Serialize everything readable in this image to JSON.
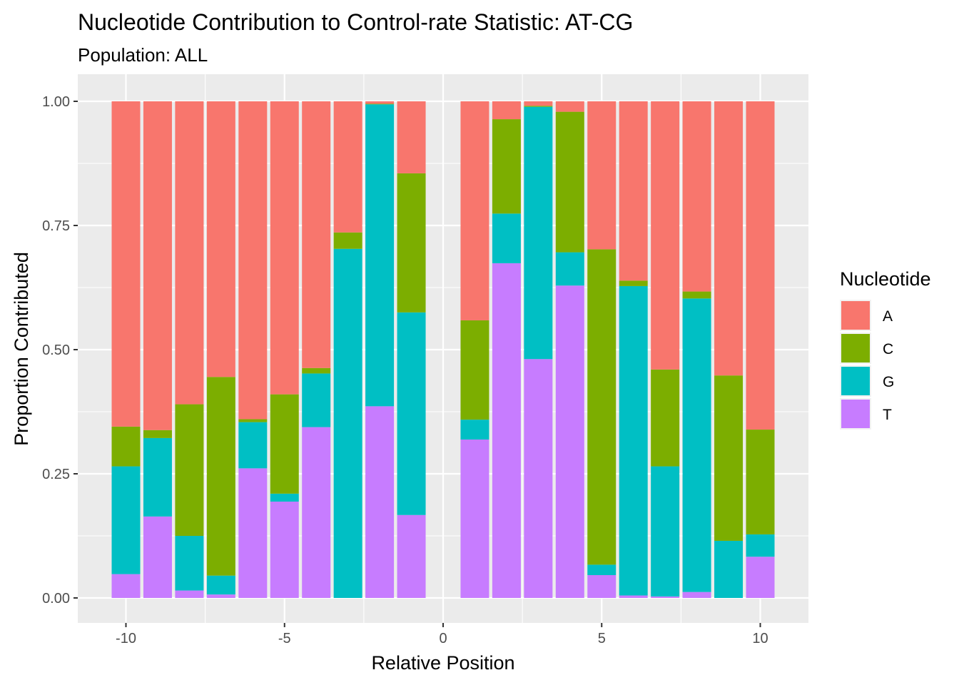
{
  "chart_data": {
    "type": "bar",
    "stacked": true,
    "title": "Nucleotide Contribution to Control-rate Statistic: AT-CG",
    "subtitle": "Population: ALL",
    "xlabel": "Relative Position",
    "ylabel": "Proportion Contributed",
    "xlim": [
      -10.5,
      10.5
    ],
    "ylim": [
      0,
      1
    ],
    "x_ticks": [
      -10,
      -5,
      0,
      5,
      10
    ],
    "x_tick_labels": [
      "-10",
      "-5",
      "0",
      "5",
      "10"
    ],
    "y_ticks": [
      0,
      0.25,
      0.5,
      0.75,
      1.0
    ],
    "y_tick_labels": [
      "0.00",
      "0.25",
      "0.50",
      "0.75",
      "1.00"
    ],
    "grid": true,
    "legend": {
      "title": "Nucleotide",
      "placement": "right"
    },
    "stack_order_bottom_to_top": [
      "T",
      "G",
      "C",
      "A"
    ],
    "x": [
      -10,
      -9,
      -8,
      -7,
      -6,
      -5,
      -4,
      -3,
      -2,
      -1,
      1,
      2,
      3,
      4,
      5,
      6,
      7,
      8,
      9,
      10
    ],
    "series": [
      {
        "name": "A",
        "color": "#F8766D",
        "values": [
          0.655,
          0.662,
          0.61,
          0.555,
          0.64,
          0.59,
          0.537,
          0.264,
          0.005,
          0.145,
          0.441,
          0.036,
          0.009,
          0.021,
          0.298,
          0.361,
          0.54,
          0.383,
          0.552,
          0.661
        ]
      },
      {
        "name": "C",
        "color": "#7CAE00",
        "values": [
          0.08,
          0.016,
          0.265,
          0.4,
          0.006,
          0.2,
          0.011,
          0.033,
          0.001,
          0.28,
          0.2,
          0.19,
          0.002,
          0.283,
          0.635,
          0.011,
          0.195,
          0.014,
          0.333,
          0.211
        ]
      },
      {
        "name": "G",
        "color": "#00BFC4",
        "values": [
          0.217,
          0.158,
          0.11,
          0.038,
          0.093,
          0.016,
          0.108,
          0.703,
          0.608,
          0.408,
          0.04,
          0.1,
          0.508,
          0.067,
          0.021,
          0.623,
          0.262,
          0.591,
          0.115,
          0.045
        ]
      },
      {
        "name": "T",
        "color": "#C77CFF",
        "values": [
          0.048,
          0.164,
          0.015,
          0.007,
          0.261,
          0.194,
          0.344,
          0.0,
          0.386,
          0.167,
          0.319,
          0.674,
          0.481,
          0.629,
          0.046,
          0.005,
          0.003,
          0.012,
          0.0,
          0.083
        ]
      }
    ]
  }
}
